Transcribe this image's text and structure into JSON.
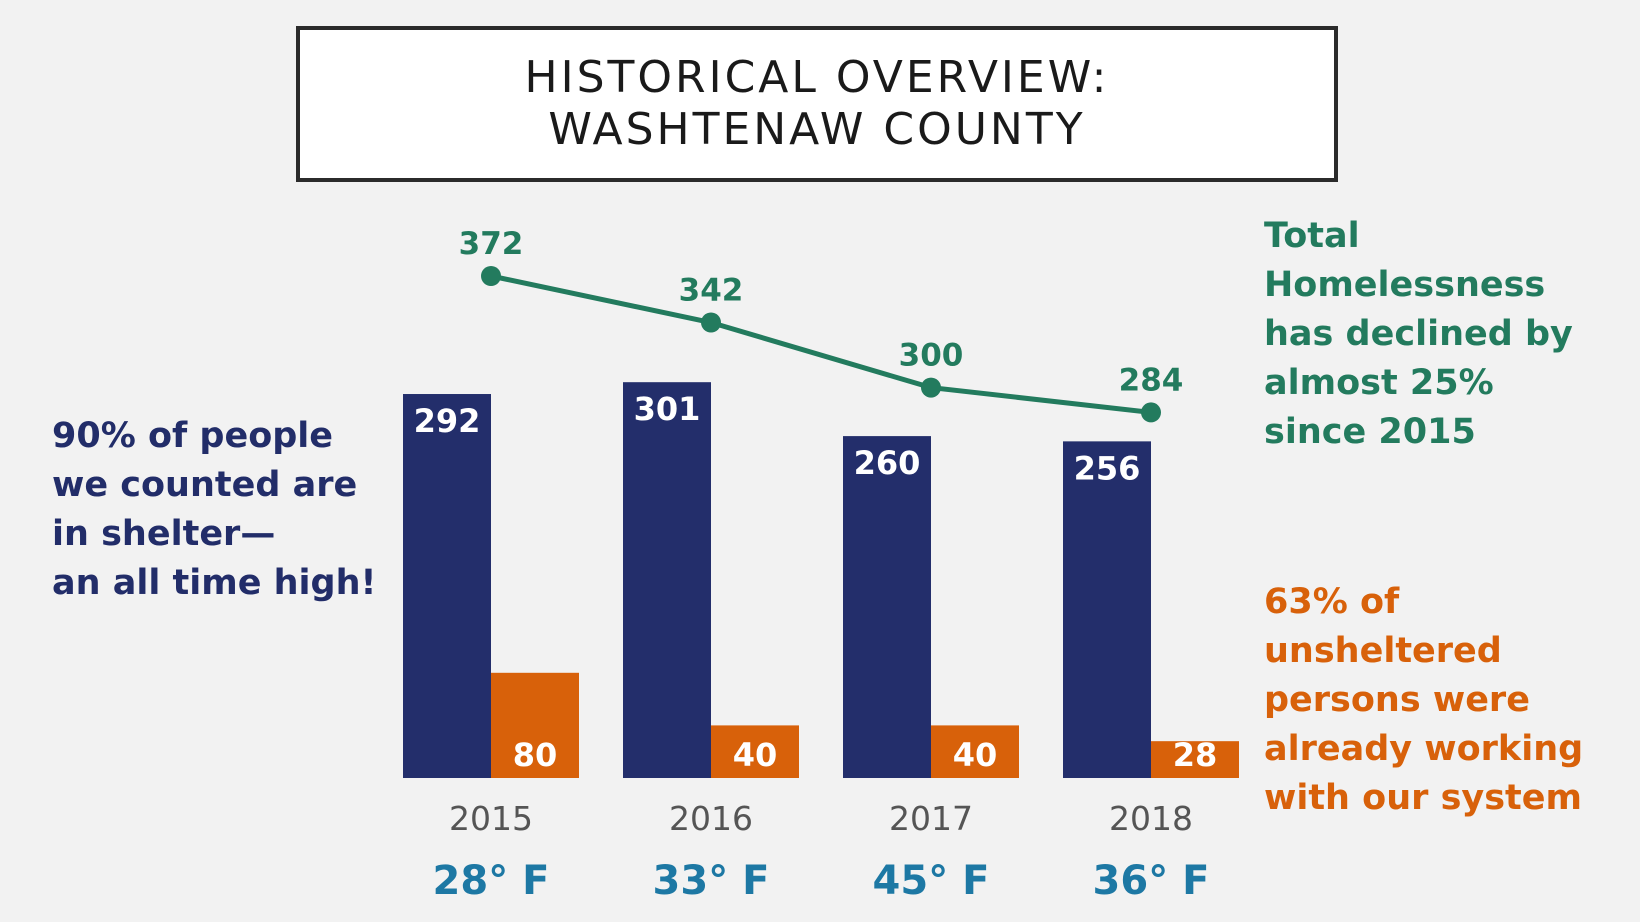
{
  "title": {
    "line1": "HISTORICAL OVERVIEW:",
    "line2": "WASHTENAW COUNTY"
  },
  "notes": {
    "left": [
      "90% of people",
      "we counted are",
      "in shelter—",
      "an all time high!"
    ],
    "right_top": [
      "Total",
      "Homelessness",
      "has declined by",
      "almost 25%",
      "since 2015"
    ],
    "right_bottom": [
      "63% of",
      "unsheltered",
      "persons were",
      "already working",
      "with our system"
    ]
  },
  "colors": {
    "sheltered": "#232e6b",
    "unsheltered": "#d8610a",
    "total": "#237b5e",
    "temperature": "#1d78a4",
    "year": "#555555"
  },
  "chart_data": {
    "type": "bar",
    "categories": [
      "2015",
      "2016",
      "2017",
      "2018"
    ],
    "category_sublabels": [
      "28° F",
      "33° F",
      "45° F",
      "36° F"
    ],
    "series": [
      {
        "type": "bar",
        "values": [
          292,
          301,
          260,
          256
        ]
      },
      {
        "type": "bar",
        "values": [
          80,
          40,
          40,
          28
        ]
      },
      {
        "type": "line",
        "values": [
          372,
          342,
          300,
          284
        ]
      }
    ],
    "bar_ylim": [
      0,
      300
    ],
    "line_ylim": [
      100,
      380
    ],
    "grid": false
  }
}
